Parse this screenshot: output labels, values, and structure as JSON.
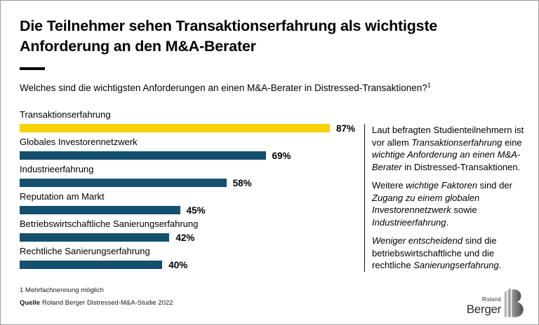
{
  "header": {
    "title": "Die Teilnehmer sehen Transaktionserfahrung als wichtigste Anforderung an den M&A-Berater",
    "question": "Welches sind die wichtigsten Anforderungen an einen M&A-Berater in Distressed-Transaktionen?",
    "question_footnote_marker": "1"
  },
  "chart_data": {
    "type": "bar",
    "orientation": "horizontal",
    "categories": [
      "Transaktionserfahrung",
      "Globales Investorennetzwerk",
      "Industrieerfahrung",
      "Reputation am Markt",
      "Betriebswirtschaftliche Sanierungserfahrung",
      "Rechtliche Sanierungserfahrung"
    ],
    "values": [
      87,
      69,
      58,
      45,
      42,
      40
    ],
    "value_suffix": "%",
    "xlim": [
      0,
      100
    ],
    "highlight_index": 0,
    "colors": {
      "highlight": "#F5D200",
      "default": "#14506E"
    },
    "title": "Welches sind die wichtigsten Anforderungen an einen M&A-Berater in Distressed-Transaktionen?",
    "xlabel": "",
    "ylabel": "",
    "grid": false,
    "legend": "none"
  },
  "commentary": {
    "paragraphs": [
      [
        {
          "text": "Laut befragten Studienteilnehmern ist vor allem "
        },
        {
          "text": "Transaktionserfahrung",
          "italic": true
        },
        {
          "text": " eine "
        },
        {
          "text": "wichtige Anforderung an einen M&A-Berater",
          "italic": true
        },
        {
          "text": " in Distressed-Transaktionen."
        }
      ],
      [
        {
          "text": "Weitere "
        },
        {
          "text": "wichtige Faktoren",
          "italic": true
        },
        {
          "text": " sind der "
        },
        {
          "text": "Zugang zu einem globalen Investorennetzwerk",
          "italic": true
        },
        {
          "text": " sowie "
        },
        {
          "text": "Industrieerfahrung",
          "italic": true
        },
        {
          "text": "."
        }
      ],
      [
        {
          "text": "Weniger entscheidend",
          "italic": true
        },
        {
          "text": " sind die betriebswirtschaftliche und die rechtliche "
        },
        {
          "text": "Sanierungserfahrung",
          "italic": true
        },
        {
          "text": "."
        }
      ]
    ]
  },
  "footer": {
    "footnote": "1 Mehrfachnennung möglich",
    "source_label": "Quelle",
    "source_text": "Roland Berger Distressed-M&A-Studie 2022"
  },
  "logo": {
    "line1": "Roland",
    "line2": "Berger"
  }
}
